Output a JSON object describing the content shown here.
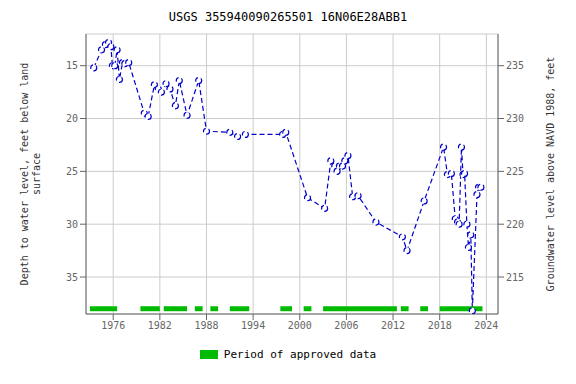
{
  "chart_data": {
    "type": "line",
    "title": "USGS 355940090265501 16N06E28ABB1",
    "y_label": "Depth to water level, feet below land\nsurface",
    "y2_label": "Groundwater level above NAVD 1988, feet",
    "x": [
      1973.5,
      1974.5,
      1975.0,
      1975.4,
      1975.7,
      1975.9,
      1976.2,
      1976.5,
      1976.8,
      1977.2,
      1977.5,
      1978.0,
      1980.0,
      1980.5,
      1981.3,
      1981.8,
      1982.2,
      1982.8,
      1983.3,
      1984.0,
      1984.5,
      1985.5,
      1987.0,
      1988.0,
      1991.0,
      1992.0,
      1993.0,
      1997.8,
      1998.2,
      2001.0,
      2003.2,
      2004.0,
      2004.5,
      2004.8,
      2005.1,
      2005.5,
      2005.8,
      2006.2,
      2006.8,
      2007.5,
      2009.8,
      2013.2,
      2013.8,
      2016.0,
      2018.5,
      2019.0,
      2019.5,
      2020.0,
      2020.3,
      2020.5,
      2020.8,
      2021.0,
      2021.2,
      2021.5,
      2021.7,
      2022.0,
      2022.2,
      2022.8,
      2023.0,
      2023.3
    ],
    "values": [
      15.2,
      13.5,
      13.0,
      12.8,
      13.2,
      15.0,
      15.0,
      13.5,
      16.3,
      14.7,
      14.8,
      14.7,
      19.5,
      19.8,
      16.8,
      17.2,
      17.5,
      16.7,
      17.2,
      18.8,
      16.4,
      19.7,
      16.4,
      21.2,
      21.3,
      21.7,
      21.5,
      21.5,
      21.3,
      27.5,
      28.5,
      24.0,
      24.5,
      25.0,
      24.5,
      24.5,
      24.0,
      23.5,
      27.4,
      27.3,
      29.8,
      31.2,
      32.5,
      27.8,
      22.7,
      25.3,
      25.2,
      29.5,
      29.8,
      30.0,
      22.7,
      25.3,
      25.2,
      30.0,
      32.2,
      31.0,
      38.2,
      27.2,
      26.5,
      26.5
    ],
    "color": "#0000CC",
    "marker": "circle",
    "line_style": "dashed",
    "xlim": [
      1972.5,
      2025.5
    ],
    "xticks": [
      1976,
      1982,
      1988,
      1994,
      2000,
      2006,
      2012,
      2018,
      2024
    ],
    "ylim": [
      38.5,
      12.0
    ],
    "yticks": [
      15,
      20,
      25,
      30,
      35
    ],
    "y2lim": [
      211.5,
      238.0
    ],
    "y2ticks": [
      235,
      230,
      225,
      220,
      215
    ],
    "grid": true,
    "approved_data": {
      "name": "Period of approved data",
      "color": "#00BB00",
      "y": 38.0,
      "segments": [
        [
          1973.0,
          1976.5
        ],
        [
          1979.5,
          1982.0
        ],
        [
          1982.5,
          1985.5
        ],
        [
          1986.5,
          1987.5
        ],
        [
          1988.5,
          1989.5
        ],
        [
          1991.0,
          1993.5
        ],
        [
          1997.5,
          1999.0
        ],
        [
          2000.5,
          2001.5
        ],
        [
          2003.0,
          2012.5
        ],
        [
          2013.0,
          2014.0
        ],
        [
          2015.5,
          2016.5
        ],
        [
          2018.0,
          2023.5
        ]
      ]
    }
  }
}
